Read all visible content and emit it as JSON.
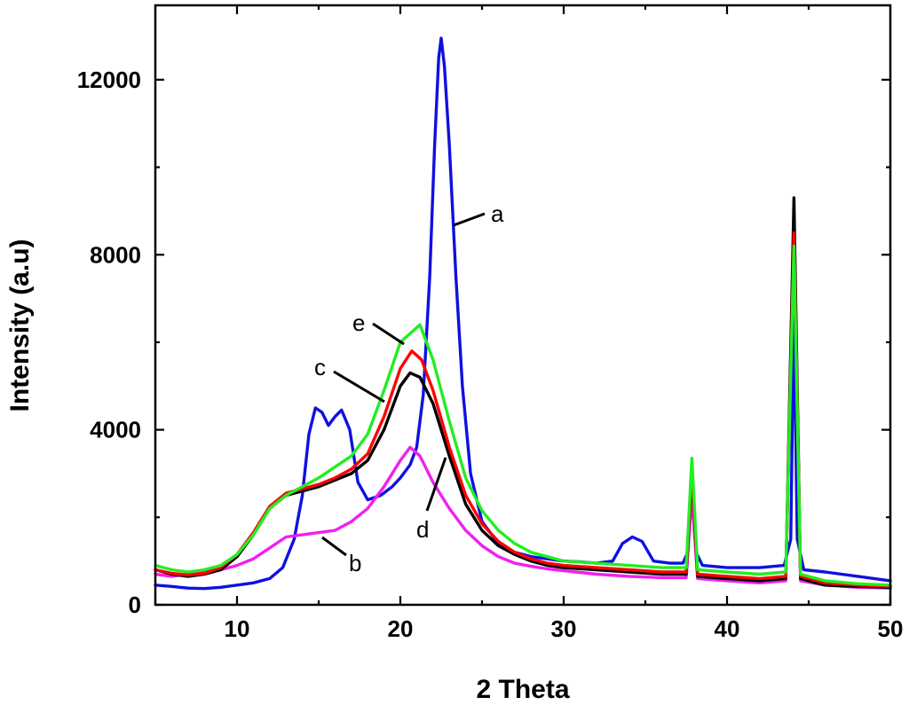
{
  "chart_data": {
    "type": "line",
    "title": "",
    "xlabel": "2 Theta",
    "ylabel": "Intensity (a.u)",
    "xlim": [
      5,
      50
    ],
    "ylim": [
      0,
      13700
    ],
    "x_ticks": [
      10,
      20,
      30,
      40,
      50
    ],
    "x_tick_labels": [
      "10",
      "20",
      "30",
      "40",
      "50"
    ],
    "y_ticks": [
      0,
      4000,
      8000,
      12000
    ],
    "y_tick_labels": [
      "0",
      "4000",
      "8000",
      "12000"
    ],
    "grid": false,
    "legend": "none",
    "series": [
      {
        "name": "a",
        "color": "#1010e0",
        "points": [
          [
            5,
            450
          ],
          [
            6,
            420
          ],
          [
            7,
            380
          ],
          [
            8,
            370
          ],
          [
            9,
            400
          ],
          [
            10,
            450
          ],
          [
            11,
            500
          ],
          [
            12,
            600
          ],
          [
            12.8,
            850
          ],
          [
            13.5,
            1500
          ],
          [
            14,
            2500
          ],
          [
            14.4,
            3900
          ],
          [
            14.8,
            4500
          ],
          [
            15.2,
            4400
          ],
          [
            15.6,
            4100
          ],
          [
            16,
            4300
          ],
          [
            16.4,
            4450
          ],
          [
            16.9,
            4000
          ],
          [
            17.4,
            2800
          ],
          [
            18,
            2400
          ],
          [
            18.8,
            2500
          ],
          [
            19.5,
            2700
          ],
          [
            20,
            2900
          ],
          [
            20.6,
            3200
          ],
          [
            21,
            3600
          ],
          [
            21.4,
            4800
          ],
          [
            21.8,
            7500
          ],
          [
            22.1,
            10500
          ],
          [
            22.35,
            12500
          ],
          [
            22.5,
            12950
          ],
          [
            22.7,
            12300
          ],
          [
            23,
            10500
          ],
          [
            23.4,
            7500
          ],
          [
            23.8,
            5000
          ],
          [
            24.3,
            3000
          ],
          [
            25,
            1900
          ],
          [
            26,
            1400
          ],
          [
            27,
            1200
          ],
          [
            28,
            1100
          ],
          [
            29,
            1050
          ],
          [
            30,
            1000
          ],
          [
            31,
            980
          ],
          [
            32,
            950
          ],
          [
            33,
            1000
          ],
          [
            33.6,
            1400
          ],
          [
            34.2,
            1550
          ],
          [
            34.8,
            1450
          ],
          [
            35.5,
            1000
          ],
          [
            36.5,
            950
          ],
          [
            37.3,
            950
          ],
          [
            37.6,
            1200
          ],
          [
            37.85,
            2900
          ],
          [
            38.1,
            1200
          ],
          [
            38.5,
            900
          ],
          [
            40,
            850
          ],
          [
            42,
            850
          ],
          [
            43.5,
            900
          ],
          [
            43.9,
            1500
          ],
          [
            44.1,
            6800
          ],
          [
            44.3,
            1500
          ],
          [
            44.7,
            800
          ],
          [
            46,
            750
          ],
          [
            48,
            650
          ],
          [
            50,
            550
          ]
        ]
      },
      {
        "name": "b",
        "color": "#f020f0",
        "points": [
          [
            5,
            700
          ],
          [
            6,
            650
          ],
          [
            7,
            700
          ],
          [
            8,
            750
          ],
          [
            9,
            800
          ],
          [
            10,
            900
          ],
          [
            11,
            1050
          ],
          [
            12,
            1300
          ],
          [
            13,
            1550
          ],
          [
            14,
            1600
          ],
          [
            15,
            1650
          ],
          [
            16,
            1700
          ],
          [
            17,
            1900
          ],
          [
            18,
            2200
          ],
          [
            19,
            2700
          ],
          [
            20,
            3300
          ],
          [
            20.6,
            3600
          ],
          [
            21.2,
            3400
          ],
          [
            22,
            2800
          ],
          [
            23,
            2200
          ],
          [
            24,
            1700
          ],
          [
            25,
            1350
          ],
          [
            26,
            1100
          ],
          [
            27,
            950
          ],
          [
            28,
            880
          ],
          [
            29,
            820
          ],
          [
            30,
            780
          ],
          [
            32,
            700
          ],
          [
            34,
            650
          ],
          [
            36,
            620
          ],
          [
            37.5,
            620
          ],
          [
            37.85,
            2500
          ],
          [
            38.2,
            600
          ],
          [
            40,
            550
          ],
          [
            42,
            500
          ],
          [
            43.6,
            550
          ],
          [
            44.1,
            9000
          ],
          [
            44.5,
            550
          ],
          [
            46,
            450
          ],
          [
            48,
            400
          ],
          [
            50,
            380
          ]
        ]
      },
      {
        "name": "c",
        "color": "#000000",
        "points": [
          [
            5,
            800
          ],
          [
            6,
            700
          ],
          [
            7,
            650
          ],
          [
            8,
            700
          ],
          [
            9,
            800
          ],
          [
            10,
            1100
          ],
          [
            11,
            1600
          ],
          [
            12,
            2200
          ],
          [
            13,
            2500
          ],
          [
            14,
            2600
          ],
          [
            15,
            2700
          ],
          [
            16,
            2850
          ],
          [
            17,
            3000
          ],
          [
            18,
            3300
          ],
          [
            19,
            4000
          ],
          [
            20,
            5000
          ],
          [
            20.6,
            5300
          ],
          [
            21.2,
            5200
          ],
          [
            22,
            4600
          ],
          [
            23,
            3400
          ],
          [
            24,
            2300
          ],
          [
            25,
            1700
          ],
          [
            26,
            1350
          ],
          [
            27,
            1150
          ],
          [
            28,
            1000
          ],
          [
            29,
            900
          ],
          [
            30,
            850
          ],
          [
            32,
            800
          ],
          [
            34,
            750
          ],
          [
            36,
            700
          ],
          [
            37.5,
            700
          ],
          [
            37.85,
            3000
          ],
          [
            38.2,
            650
          ],
          [
            40,
            600
          ],
          [
            42,
            550
          ],
          [
            43.6,
            600
          ],
          [
            44.1,
            9300
          ],
          [
            44.5,
            600
          ],
          [
            46,
            450
          ],
          [
            48,
            420
          ],
          [
            50,
            400
          ]
        ]
      },
      {
        "name": "d",
        "color": "#ff0000",
        "points": [
          [
            5,
            800
          ],
          [
            6,
            720
          ],
          [
            7,
            680
          ],
          [
            8,
            720
          ],
          [
            9,
            850
          ],
          [
            10,
            1150
          ],
          [
            11,
            1650
          ],
          [
            12,
            2250
          ],
          [
            13,
            2550
          ],
          [
            14,
            2650
          ],
          [
            15,
            2750
          ],
          [
            16,
            2900
          ],
          [
            17,
            3100
          ],
          [
            18,
            3450
          ],
          [
            19,
            4300
          ],
          [
            20,
            5400
          ],
          [
            20.7,
            5800
          ],
          [
            21.3,
            5600
          ],
          [
            22,
            4900
          ],
          [
            23,
            3600
          ],
          [
            24,
            2500
          ],
          [
            25,
            1850
          ],
          [
            26,
            1450
          ],
          [
            27,
            1200
          ],
          [
            28,
            1050
          ],
          [
            29,
            950
          ],
          [
            30,
            900
          ],
          [
            32,
            850
          ],
          [
            34,
            800
          ],
          [
            36,
            750
          ],
          [
            37.5,
            750
          ],
          [
            37.85,
            3100
          ],
          [
            38.2,
            700
          ],
          [
            40,
            650
          ],
          [
            42,
            600
          ],
          [
            43.6,
            650
          ],
          [
            44.1,
            8500
          ],
          [
            44.5,
            650
          ],
          [
            46,
            500
          ],
          [
            48,
            450
          ],
          [
            50,
            420
          ]
        ]
      },
      {
        "name": "e",
        "color": "#22ee22",
        "points": [
          [
            5,
            900
          ],
          [
            6,
            800
          ],
          [
            7,
            750
          ],
          [
            8,
            800
          ],
          [
            9,
            900
          ],
          [
            10,
            1150
          ],
          [
            11,
            1600
          ],
          [
            12,
            2200
          ],
          [
            13,
            2500
          ],
          [
            14,
            2700
          ],
          [
            15,
            2900
          ],
          [
            16,
            3150
          ],
          [
            17,
            3400
          ],
          [
            18,
            3900
          ],
          [
            19,
            4900
          ],
          [
            20,
            6000
          ],
          [
            20.6,
            6200
          ],
          [
            21.2,
            6400
          ],
          [
            22,
            5600
          ],
          [
            23,
            4200
          ],
          [
            24,
            2900
          ],
          [
            25,
            2150
          ],
          [
            26,
            1700
          ],
          [
            27,
            1400
          ],
          [
            28,
            1200
          ],
          [
            29,
            1100
          ],
          [
            30,
            1000
          ],
          [
            32,
            950
          ],
          [
            34,
            900
          ],
          [
            36,
            850
          ],
          [
            37.5,
            850
          ],
          [
            37.85,
            3350
          ],
          [
            38.2,
            800
          ],
          [
            40,
            750
          ],
          [
            42,
            700
          ],
          [
            43.6,
            750
          ],
          [
            44.1,
            8200
          ],
          [
            44.5,
            700
          ],
          [
            46,
            550
          ],
          [
            48,
            480
          ],
          [
            50,
            450
          ]
        ]
      }
    ],
    "annotations": [
      {
        "text": "a",
        "series": "a"
      },
      {
        "text": "b",
        "series": "b"
      },
      {
        "text": "c",
        "series": "c"
      },
      {
        "text": "d",
        "series": "d"
      },
      {
        "text": "e",
        "series": "e"
      }
    ]
  }
}
